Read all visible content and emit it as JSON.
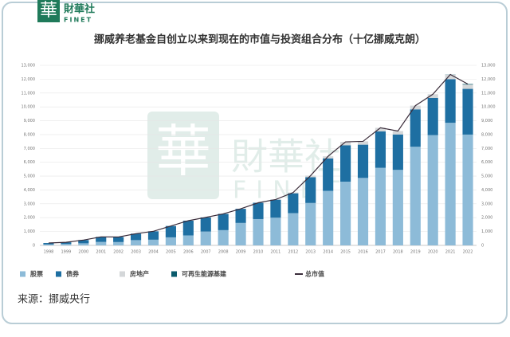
{
  "header": {
    "logo_char": "華",
    "logo_name": "財華社",
    "logo_en": "FINET"
  },
  "chart_data": {
    "type": "bar",
    "stacked": true,
    "title": "挪威养老基金自创立以来到现在的市值与投资组合分布（十亿挪威克朗）",
    "categories": [
      "1998",
      "1999",
      "2000",
      "2001",
      "2002",
      "2003",
      "2004",
      "2005",
      "2006",
      "2007",
      "2008",
      "2009",
      "2010",
      "2011",
      "2012",
      "2013",
      "2014",
      "2015",
      "2016",
      "2017",
      "2018",
      "2019",
      "2020",
      "2021",
      "2022"
    ],
    "series": [
      {
        "name": "股票",
        "type": "bar",
        "color": "#8dbbd8",
        "values": [
          70,
          100,
          150,
          250,
          240,
          380,
          410,
          580,
          720,
          1000,
          1100,
          1620,
          1900,
          2000,
          2330,
          3060,
          3940,
          4600,
          4870,
          5600,
          5450,
          7120,
          7960,
          8850,
          8000
        ]
      },
      {
        "name": "债券",
        "type": "bar",
        "color": "#1e6fa2",
        "values": [
          102,
          122,
          236,
          364,
          364,
          465,
          606,
          819,
          1064,
          1019,
          1175,
          1020,
          1177,
          1300,
          1430,
          1860,
          2340,
          2630,
          2400,
          2630,
          2560,
          2700,
          2690,
          3150,
          3300
        ]
      },
      {
        "name": "房地产",
        "type": "bar",
        "color": "#d4d7d9",
        "values": [
          0,
          0,
          0,
          0,
          0,
          0,
          0,
          0,
          0,
          0,
          0,
          0,
          0,
          12,
          56,
          118,
          151,
          245,
          240,
          258,
          246,
          268,
          264,
          330,
          310
        ]
      },
      {
        "name": "可再生能源基建",
        "type": "bar",
        "color": "#0b5b6c",
        "values": [
          0,
          0,
          0,
          0,
          0,
          0,
          0,
          0,
          0,
          0,
          0,
          0,
          0,
          0,
          0,
          0,
          0,
          0,
          0,
          0,
          0,
          0,
          0,
          10,
          40
        ]
      },
      {
        "name": "总市值",
        "type": "line",
        "color": "#3a2c3a",
        "values": [
          172,
          222,
          386,
          614,
          604,
          845,
          1016,
          1399,
          1784,
          2019,
          2275,
          2640,
          3077,
          3312,
          3816,
          5038,
          6431,
          7475,
          7510,
          8488,
          8256,
          10088,
          10914,
          12340,
          11650
        ]
      }
    ],
    "ylim": [
      0,
      13000
    ],
    "yticks": [
      0,
      {
        "value": 1000,
        "label": "1,000"
      },
      {
        "value": 2000,
        "label": "2,000"
      },
      {
        "value": 3000,
        "label": "3,000"
      },
      {
        "value": 4000,
        "label": "4,000"
      },
      {
        "value": 5000,
        "label": "5,000"
      },
      {
        "value": 6000,
        "label": "6,000"
      },
      {
        "value": 7000,
        "label": "7,000"
      },
      {
        "value": 8000,
        "label": "8,000"
      },
      {
        "value": 9000,
        "label": "9,000"
      },
      {
        "value": 10000,
        "label": "10,000"
      },
      {
        "value": 11000,
        "label": "11,000"
      },
      {
        "value": 12000,
        "label": "12,000"
      },
      {
        "value": 13000,
        "label": "13,000"
      }
    ],
    "grid": true,
    "source": "来源：挪威央行"
  }
}
